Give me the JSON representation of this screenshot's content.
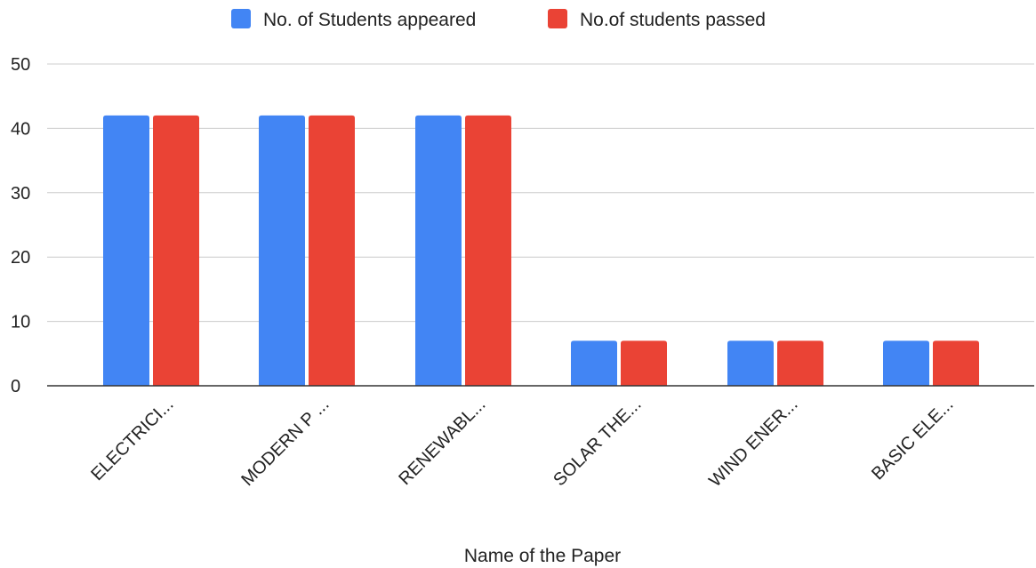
{
  "chart_data": {
    "type": "bar",
    "categories": [
      "ELECTRICI...",
      "MODERN P ...",
      "RENEWABL...",
      "SOLAR THE...",
      "WIND ENER...",
      "BASIC ELE..."
    ],
    "series": [
      {
        "name": "No. of Students appeared",
        "values": [
          42,
          42,
          42,
          7,
          7,
          7
        ],
        "color": "#4285f4"
      },
      {
        "name": "No.of students passed",
        "values": [
          42,
          42,
          42,
          7,
          7,
          7
        ],
        "color": "#ea4335"
      }
    ],
    "xlabel": "Name of the Paper",
    "ylabel": "",
    "ylim": [
      0,
      50
    ],
    "yticks": [
      0,
      10,
      20,
      30,
      40,
      50
    ],
    "legend_position": "top-center",
    "grid": true
  }
}
